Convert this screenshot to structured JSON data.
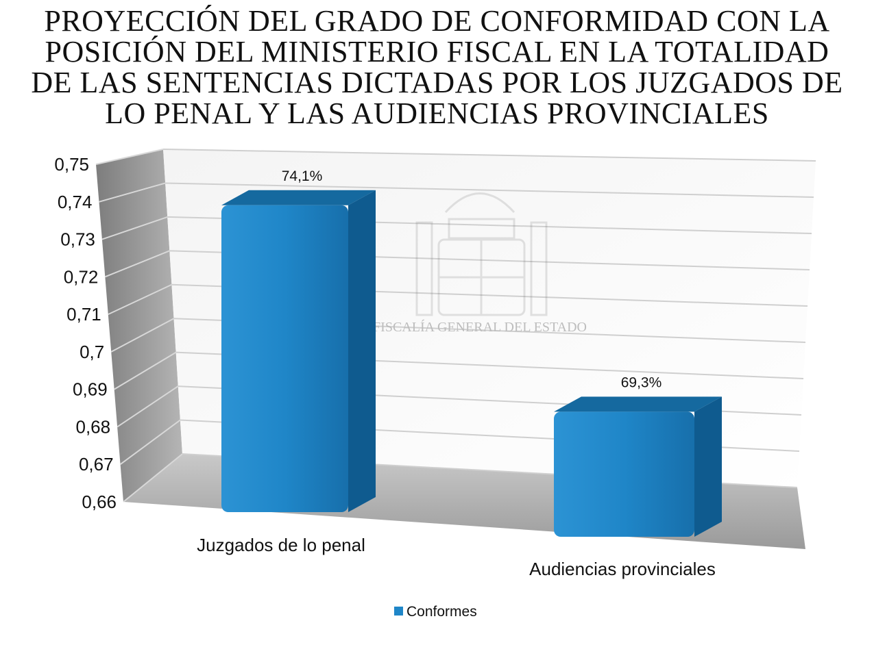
{
  "chart_data": {
    "type": "bar",
    "title": "PROYECCIÓN DEL GRADO DE CONFORMIDAD CON LA POSICIÓN DEL MINISTERIO FISCAL EN LA TOTALIDAD DE LAS SENTENCIAS DICTADAS POR LOS JUZGADOS DE LO PENAL Y LAS AUDIENCIAS PROVINCIALES",
    "categories": [
      "Juzgados de lo penal",
      "Audiencias provinciales"
    ],
    "series": [
      {
        "name": "Conformes",
        "values": [
          0.741,
          0.693
        ],
        "data_labels": [
          "74,1%",
          "69,3%"
        ],
        "color": "#1f86c8"
      }
    ],
    "ylim": [
      0.66,
      0.75
    ],
    "y_ticks": [
      "0,75",
      "0,74",
      "0,73",
      "0,72",
      "0,71",
      "0,7",
      "0,69",
      "0,68",
      "0,67",
      "0,66"
    ],
    "grid": true,
    "legend_position": "bottom",
    "watermark": "FISCALÍA GENERAL DEL ESTADO"
  }
}
